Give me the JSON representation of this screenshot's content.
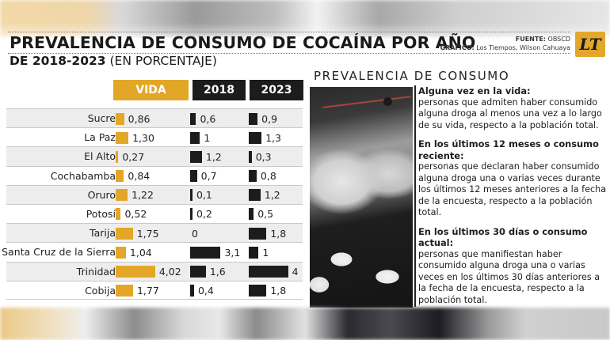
{
  "header": {
    "title": "PREVALENCIA DE CONSUMO DE COCAÍNA POR AÑO",
    "subtitle_bold": "DE 2018-2023",
    "subtitle_rest": " (EN PORCENTAJE)",
    "source_label": "FUENTE:",
    "source_value": " OBSCD",
    "graphic_label": "GRÁFICO:",
    "graphic_value": " Los Tiempos, Wilson Cahuaya",
    "logo_text": "LT"
  },
  "columns": {
    "vida": "VIDA",
    "y2018": "2018",
    "y2023": "2023"
  },
  "colors": {
    "vida": "#e3a727",
    "years": "#1c1c1c"
  },
  "rows": [
    {
      "name": "Sucre",
      "vida": "0,86",
      "y2018": "0,6",
      "y2023": "0,9"
    },
    {
      "name": "La Paz",
      "vida": "1,30",
      "y2018": "1",
      "y2023": "1,3"
    },
    {
      "name": "El Alto",
      "vida": "0,27",
      "y2018": "1,2",
      "y2023": "0,3"
    },
    {
      "name": "Cochabamba",
      "vida": "0,84",
      "y2018": "0,7",
      "y2023": "0,8"
    },
    {
      "name": "Oruro",
      "vida": "1,22",
      "y2018": "0,1",
      "y2023": "1,2"
    },
    {
      "name": "Potosí",
      "vida": "0,52",
      "y2018": "0,2",
      "y2023": "0,5"
    },
    {
      "name": "Tarija",
      "vida": "1,75",
      "y2018": "0",
      "y2023": "1,8"
    },
    {
      "name": "Santa Cruz de la Sierra",
      "vida": "1,04",
      "y2018": "3,1",
      "y2023": "1"
    },
    {
      "name": "Trinidad",
      "vida": "4,02",
      "y2018": "1,6",
      "y2023": "4"
    },
    {
      "name": "Cobija",
      "vida": "1,77",
      "y2018": "0,4",
      "y2023": "1,8"
    }
  ],
  "right_panel": {
    "title": "PREVALENCIA DE CONSUMO",
    "definitions": [
      {
        "term": "Alguna vez en la vida:",
        "desc": "personas que admiten haber consumido alguna droga al menos una vez a lo largo de su vida, respecto a la población total."
      },
      {
        "term": "En los últimos 12 meses o consumo reciente:",
        "desc": "personas que declaran haber consumido alguna droga una o varias veces durante los últimos 12 meses anteriores a la fecha de la encuesta, respecto a la población total."
      },
      {
        "term": "En los últimos 30 días o consumo actual:",
        "desc": "personas que manifiestan haber consumido alguna droga una o varias veces en los últimos 30 días anteriores a la fecha de la encuesta, respecto a la población total."
      }
    ]
  },
  "chart_data": {
    "type": "bar",
    "title": "PREVALENCIA DE CONSUMO DE COCAÍNA POR AÑO DE 2018-2023 (EN PORCENTAJE)",
    "xlabel": "",
    "ylabel": "Porcentaje",
    "categories": [
      "Sucre",
      "La Paz",
      "El Alto",
      "Cochabamba",
      "Oruro",
      "Potosí",
      "Tarija",
      "Santa Cruz de la Sierra",
      "Trinidad",
      "Cobija"
    ],
    "series": [
      {
        "name": "VIDA",
        "color": "#e3a727",
        "values": [
          0.86,
          1.3,
          0.27,
          0.84,
          1.22,
          0.52,
          1.75,
          1.04,
          4.02,
          1.77
        ]
      },
      {
        "name": "2018",
        "color": "#1c1c1c",
        "values": [
          0.6,
          1,
          1.2,
          0.7,
          0.1,
          0.2,
          0,
          3.1,
          1.6,
          0.4
        ]
      },
      {
        "name": "2023",
        "color": "#1c1c1c",
        "values": [
          0.9,
          1.3,
          0.3,
          0.8,
          1.2,
          0.5,
          1.8,
          1,
          4,
          1.8
        ]
      }
    ],
    "orientation": "horizontal",
    "grid": false,
    "legend_position": "top (column headers)",
    "source": "OBSCD"
  }
}
